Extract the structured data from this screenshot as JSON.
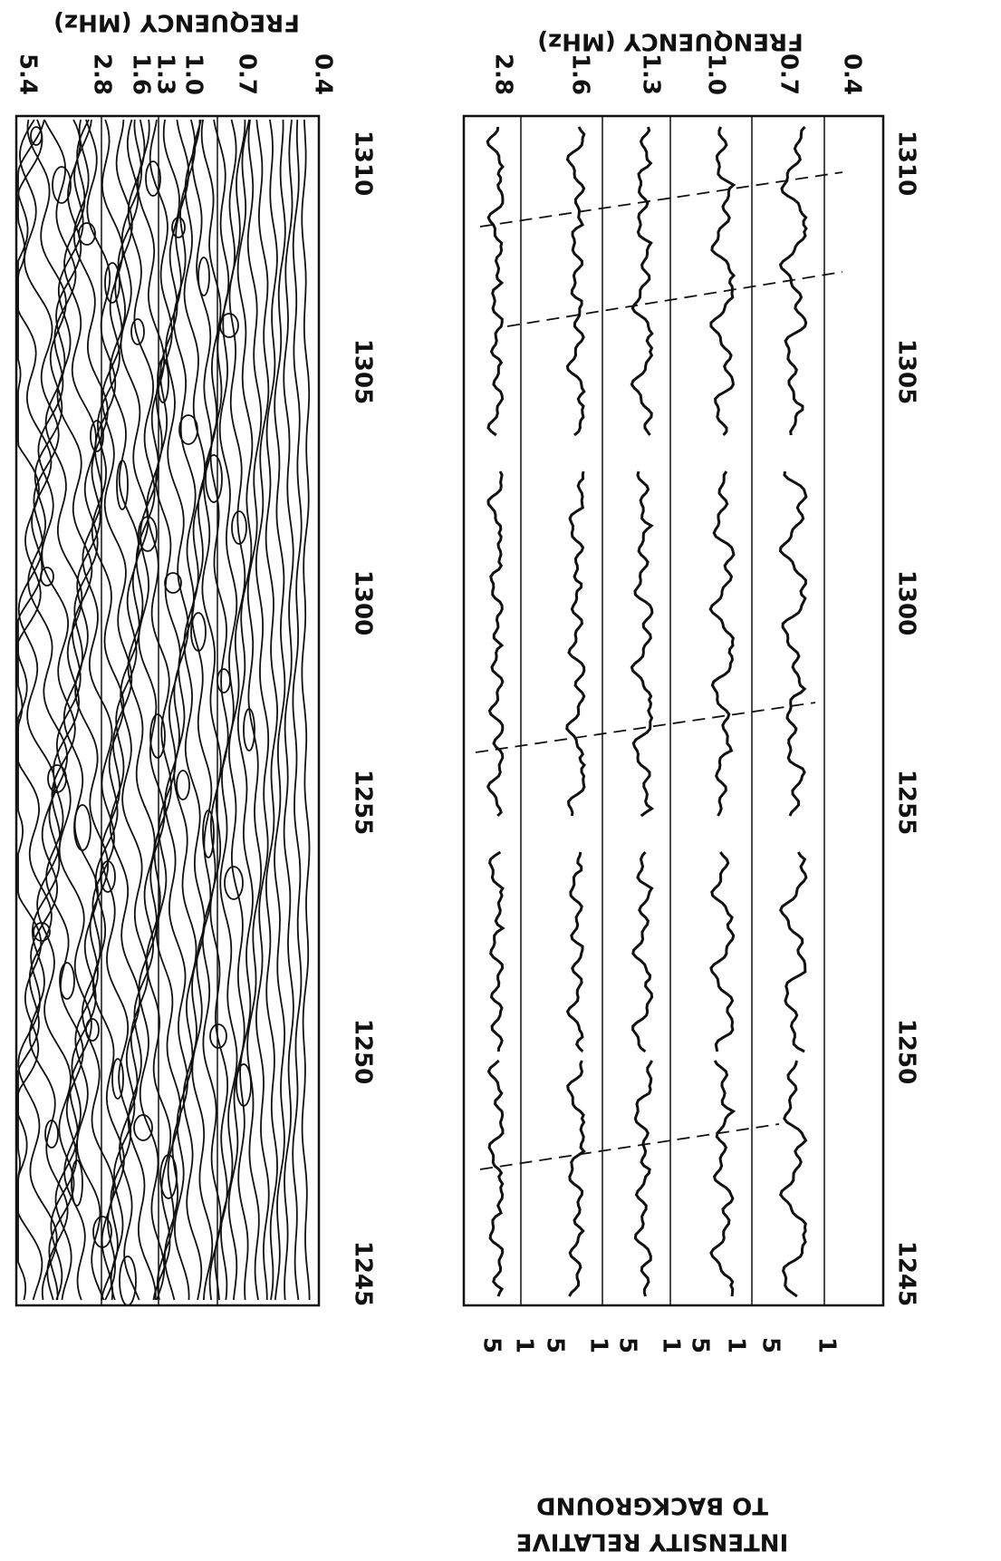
{
  "top_panel": {
    "axis_title": "FREQUENCY (MHz)",
    "frequency_labels": [
      "5.4",
      "2.8",
      "1.6",
      "1.3",
      "1.0",
      "0.7",
      "0.4"
    ],
    "time_labels": [
      "1245",
      "1250",
      "1255",
      "1300",
      "1305",
      "1310"
    ]
  },
  "bottom_panel": {
    "axis_title": "FRENQUENCY (MHz)",
    "frequency_labels": [
      "2.8",
      "1.6",
      "1.3",
      "1.0",
      "0.7",
      "0.4"
    ],
    "time_labels": [
      "1245",
      "1250",
      "1255",
      "1300",
      "1305",
      "1310"
    ],
    "intensity_labels": [
      "5",
      "1",
      "5",
      "1",
      "5",
      "1",
      "5",
      "1",
      "5",
      "1"
    ],
    "intensity_title": [
      "INTENSITY RELATIVE",
      "TO BACKGROUND"
    ]
  }
}
